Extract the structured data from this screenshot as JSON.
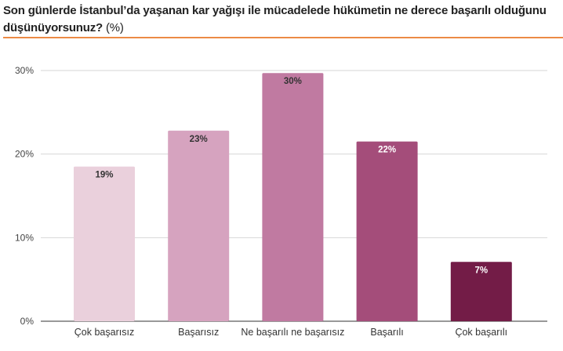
{
  "title": "Son günlerde İstanbul’da yaşanan kar yağışı ile mücadelede hükümetin ne derece başarılı olduğunu düşünüyorsunuz?",
  "title_suffix": "(%)",
  "chart_data": {
    "type": "bar",
    "title": "Son günlerde İstanbul’da yaşanan kar yağışı ile mücadelede hükümetin ne derece başarılı olduğunu düşünüyorsunuz? (%)",
    "categories": [
      "Çok başarısız",
      "Başarısız",
      "Ne başarılı ne başarısız",
      "Başarılı",
      "Çok başarılı"
    ],
    "values": [
      18.5,
      22.8,
      29.7,
      21.5,
      7.1
    ],
    "data_labels": [
      "19%",
      "23%",
      "30%",
      "22%",
      "7%"
    ],
    "colors": [
      "#ead0dc",
      "#d6a3bf",
      "#c07aa1",
      "#a44d7a",
      "#731c47"
    ],
    "label_colors": [
      "#333333",
      "#333333",
      "#333333",
      "#ffffff",
      "#ffffff"
    ],
    "yticks": [
      "0%",
      "10%",
      "20%",
      "30%"
    ],
    "ytick_values": [
      0,
      10,
      20,
      30
    ],
    "ylim": [
      0,
      30
    ],
    "xlabel": "",
    "ylabel": "",
    "grid": true,
    "legend": "none"
  }
}
